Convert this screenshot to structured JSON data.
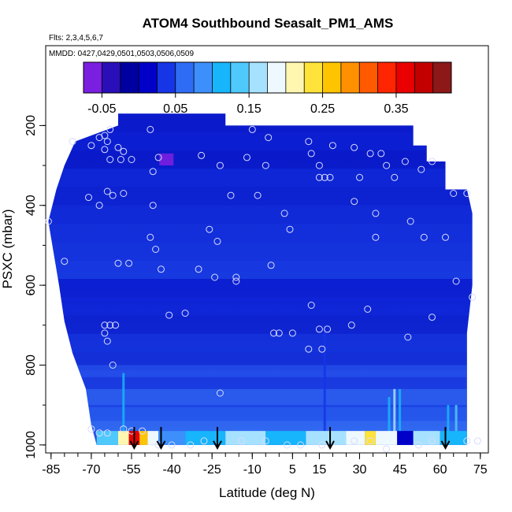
{
  "chart_data": {
    "type": "heatmap",
    "title": "ATOM4 Southbound Seasalt_PM1_AMS",
    "subtitle_flights": "Flts: 2,3,4,5,6,7",
    "subtitle_dates": "MMDD: 0427,0429,0501,0503,0506,0509",
    "xlabel": "Latitude (deg N)",
    "ylabel": "PSXC (mbar)",
    "xlim": [
      -87,
      78
    ],
    "ylim": [
      1020,
      0
    ],
    "x_ticks": [
      -85,
      -70,
      -55,
      -40,
      -25,
      -10,
      5,
      15,
      30,
      45,
      60,
      75
    ],
    "x_tick_labels": [
      "-85",
      "-70",
      "-55",
      "-40",
      "-25",
      "-10",
      "5",
      "15",
      "30",
      "45",
      "60",
      "75"
    ],
    "y_ticks": [
      200,
      400,
      600,
      800,
      1000
    ],
    "y_tick_labels": [
      "200",
      "400",
      "600",
      "800",
      "1000"
    ],
    "colorbar": {
      "min": -0.075,
      "max": 0.425,
      "tick_values": [
        -0.05,
        0.05,
        0.15,
        0.25,
        0.35
      ],
      "tick_labels": [
        "-0.05",
        "0.05",
        "0.15",
        "0.25",
        "0.35"
      ],
      "colors": [
        "#7a1fe0",
        "#2a0fb8",
        "#0000a0",
        "#0000c8",
        "#1535e6",
        "#2f6cf5",
        "#3d8ffc",
        "#17b5fb",
        "#4fc9fb",
        "#a6e2ff",
        "#eef8ff",
        "#fff7b0",
        "#ffe23a",
        "#ffc400",
        "#ff9100",
        "#ff5a00",
        "#ff2500",
        "#ea0000",
        "#c20000",
        "#8c1818"
      ]
    },
    "profile_boundary": [
      [
        -68,
        1000
      ],
      [
        -70,
        950
      ],
      [
        -72,
        860
      ],
      [
        -77,
        770
      ],
      [
        -80,
        690
      ],
      [
        -82,
        600
      ],
      [
        -84,
        520
      ],
      [
        -86,
        440
      ],
      [
        -83,
        360
      ],
      [
        -80,
        300
      ],
      [
        -76,
        240
      ],
      [
        -60,
        200
      ],
      [
        -60,
        170
      ],
      [
        -20,
        170
      ],
      [
        -20,
        200
      ],
      [
        50,
        200
      ],
      [
        50,
        250
      ],
      [
        55,
        250
      ],
      [
        55,
        290
      ],
      [
        62,
        290
      ],
      [
        62,
        360
      ],
      [
        70,
        360
      ],
      [
        72,
        420
      ],
      [
        72,
        600
      ],
      [
        70,
        720
      ],
      [
        70,
        1000
      ]
    ],
    "vertical_streaks": [
      {
        "lat": -58,
        "p_top": 820,
        "color": "#17b5fb"
      },
      {
        "lat": 17,
        "p_top": 700,
        "color": "#1535e6"
      },
      {
        "lat": 41,
        "p_top": 880,
        "color": "#17b5fb"
      },
      {
        "lat": 43,
        "p_top": 860,
        "color": "#a6e2ff"
      },
      {
        "lat": 45,
        "p_top": 860,
        "color": "#17b5fb"
      },
      {
        "lat": 63,
        "p_top": 900,
        "color": "#17b5fb"
      },
      {
        "lat": 66,
        "p_top": 900,
        "color": "#4fc9fb"
      }
    ],
    "hotspot": {
      "lat": -42,
      "p_top": 270,
      "p_bottom": 300,
      "color": "#7a1fe0"
    },
    "boundary_layer": {
      "p_top": 965,
      "p_bottom": 1005,
      "segments": [
        {
          "lat_from": -68,
          "lat_to": -60,
          "color": "#4fc9fb"
        },
        {
          "lat_from": -60,
          "lat_to": -56,
          "color": "#fff7b0"
        },
        {
          "lat_from": -56,
          "lat_to": -52,
          "color": "#ea0000"
        },
        {
          "lat_from": -52,
          "lat_to": -49,
          "color": "#ffc400"
        },
        {
          "lat_from": -49,
          "lat_to": -45,
          "color": "#eef8ff"
        },
        {
          "lat_from": -45,
          "lat_to": -35,
          "color": "#3d8ffc"
        },
        {
          "lat_from": -35,
          "lat_to": -20,
          "color": "#17b5fb"
        },
        {
          "lat_from": -20,
          "lat_to": -5,
          "color": "#a6e2ff"
        },
        {
          "lat_from": -5,
          "lat_to": 10,
          "color": "#17b5fb"
        },
        {
          "lat_from": 10,
          "lat_to": 25,
          "color": "#a6e2ff"
        },
        {
          "lat_from": 25,
          "lat_to": 32,
          "color": "#eef8ff"
        },
        {
          "lat_from": 32,
          "lat_to": 36,
          "color": "#ffe23a"
        },
        {
          "lat_from": 36,
          "lat_to": 44,
          "color": "#eef8ff"
        },
        {
          "lat_from": 44,
          "lat_to": 50,
          "color": "#0000c8"
        },
        {
          "lat_from": 50,
          "lat_to": 60,
          "color": "#a6e2ff"
        },
        {
          "lat_from": 60,
          "lat_to": 70,
          "color": "#17b5fb"
        }
      ]
    },
    "arrows_lat": [
      -54,
      -44,
      -23,
      19,
      62
    ],
    "sample_points": [
      [
        -86,
        440
      ],
      [
        -80,
        540
      ],
      [
        -77,
        240
      ],
      [
        -70,
        250
      ],
      [
        -67,
        230
      ],
      [
        -65,
        225
      ],
      [
        -64,
        240
      ],
      [
        -63,
        210
      ],
      [
        -65,
        260
      ],
      [
        -63,
        285
      ],
      [
        -60,
        255
      ],
      [
        -59,
        285
      ],
      [
        -58,
        265
      ],
      [
        -71,
        380
      ],
      [
        -67,
        400
      ],
      [
        -64,
        365
      ],
      [
        -62,
        375
      ],
      [
        -58,
        370
      ],
      [
        -55,
        285
      ],
      [
        -48,
        210
      ],
      [
        -45,
        280
      ],
      [
        -47,
        315
      ],
      [
        -47,
        400
      ],
      [
        -46,
        510
      ],
      [
        -48,
        480
      ],
      [
        -60,
        545
      ],
      [
        -56,
        545
      ],
      [
        -44,
        560
      ],
      [
        -41,
        675
      ],
      [
        -35,
        670
      ],
      [
        -26,
        460
      ],
      [
        -29,
        275
      ],
      [
        -22,
        300
      ],
      [
        -23,
        490
      ],
      [
        -30,
        560
      ],
      [
        -24,
        580
      ],
      [
        -16,
        580
      ],
      [
        -12,
        280
      ],
      [
        -18,
        375
      ],
      [
        -10,
        210
      ],
      [
        -8,
        375
      ],
      [
        -4,
        230
      ],
      [
        -3,
        550
      ],
      [
        -16,
        590
      ],
      [
        -5,
        300
      ],
      [
        -2,
        720
      ],
      [
        2,
        420
      ],
      [
        4,
        460
      ],
      [
        5,
        720
      ],
      [
        11,
        240
      ],
      [
        12,
        270
      ],
      [
        15,
        300
      ],
      [
        15,
        330
      ],
      [
        17,
        330
      ],
      [
        19,
        330
      ],
      [
        20,
        250
      ],
      [
        28,
        255
      ],
      [
        30,
        330
      ],
      [
        28,
        390
      ],
      [
        34,
        270
      ],
      [
        38,
        270
      ],
      [
        36,
        420
      ],
      [
        36,
        480
      ],
      [
        40,
        300
      ],
      [
        43,
        330
      ],
      [
        47,
        290
      ],
      [
        49,
        440
      ],
      [
        53,
        310
      ],
      [
        57,
        290
      ],
      [
        62,
        480
      ],
      [
        65,
        370
      ],
      [
        66,
        590
      ],
      [
        70,
        370
      ],
      [
        72,
        630
      ],
      [
        57,
        680
      ],
      [
        54,
        480
      ],
      [
        48,
        730
      ],
      [
        33,
        660
      ],
      [
        27,
        700
      ],
      [
        18,
        710
      ],
      [
        15,
        710
      ],
      [
        12,
        650
      ],
      [
        11,
        760
      ],
      [
        16,
        760
      ],
      [
        0,
        720
      ],
      [
        -22,
        870
      ],
      [
        -65,
        700
      ],
      [
        -63,
        700
      ],
      [
        -61,
        700
      ],
      [
        -65,
        720
      ],
      [
        -64,
        740
      ],
      [
        -62,
        800
      ],
      [
        -67,
        970
      ],
      [
        -64,
        970
      ],
      [
        -58,
        960
      ],
      [
        -55,
        965
      ],
      [
        -51,
        965
      ],
      [
        -45,
        1000
      ],
      [
        -40,
        1000
      ],
      [
        -33,
        1000
      ],
      [
        -28,
        990
      ],
      [
        -14,
        990
      ],
      [
        -5,
        990
      ],
      [
        3,
        1000
      ],
      [
        8,
        1000
      ],
      [
        16,
        1000
      ],
      [
        28,
        990
      ],
      [
        34,
        990
      ],
      [
        40,
        1010
      ],
      [
        52,
        1000
      ],
      [
        57,
        990
      ],
      [
        70,
        990
      ],
      [
        74,
        990
      ],
      [
        -70,
        960
      ]
    ]
  }
}
